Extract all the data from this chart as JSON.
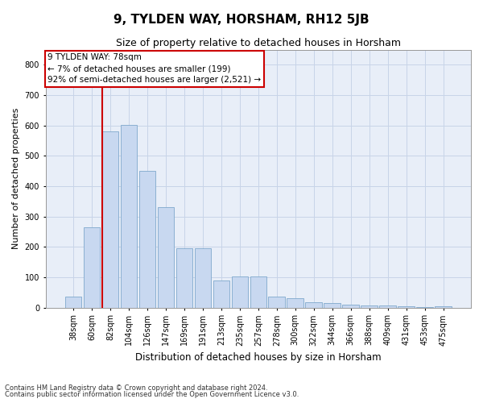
{
  "title": "9, TYLDEN WAY, HORSHAM, RH12 5JB",
  "subtitle": "Size of property relative to detached houses in Horsham",
  "xlabel": "Distribution of detached houses by size in Horsham",
  "ylabel": "Number of detached properties",
  "categories": [
    "38sqm",
    "60sqm",
    "82sqm",
    "104sqm",
    "126sqm",
    "147sqm",
    "169sqm",
    "191sqm",
    "213sqm",
    "235sqm",
    "257sqm",
    "278sqm",
    "300sqm",
    "322sqm",
    "344sqm",
    "366sqm",
    "388sqm",
    "409sqm",
    "431sqm",
    "453sqm",
    "475sqm"
  ],
  "values": [
    37,
    265,
    580,
    603,
    450,
    330,
    195,
    195,
    90,
    103,
    103,
    37,
    30,
    18,
    15,
    10,
    8,
    8,
    3,
    2,
    3
  ],
  "bar_color": "#c8d8f0",
  "bar_edge_color": "#7fa8cc",
  "vline_color": "#cc0000",
  "vline_x_index": 2,
  "annotation_text_line1": "9 TYLDEN WAY: 78sqm",
  "annotation_text_line2": "← 7% of detached houses are smaller (199)",
  "annotation_text_line3": "92% of semi-detached houses are larger (2,521) →",
  "annotation_box_facecolor": "#ffffff",
  "annotation_box_edgecolor": "#cc0000",
  "ylim": [
    0,
    850
  ],
  "yticks": [
    0,
    100,
    200,
    300,
    400,
    500,
    600,
    700,
    800
  ],
  "grid_color": "#c8d4e8",
  "plot_bg_color": "#e8eef8",
  "footnote1": "Contains HM Land Registry data © Crown copyright and database right 2024.",
  "footnote2": "Contains public sector information licensed under the Open Government Licence v3.0.",
  "title_fontsize": 11,
  "subtitle_fontsize": 9,
  "xlabel_fontsize": 8.5,
  "ylabel_fontsize": 8,
  "tick_fontsize": 7,
  "annotation_fontsize": 7.5
}
